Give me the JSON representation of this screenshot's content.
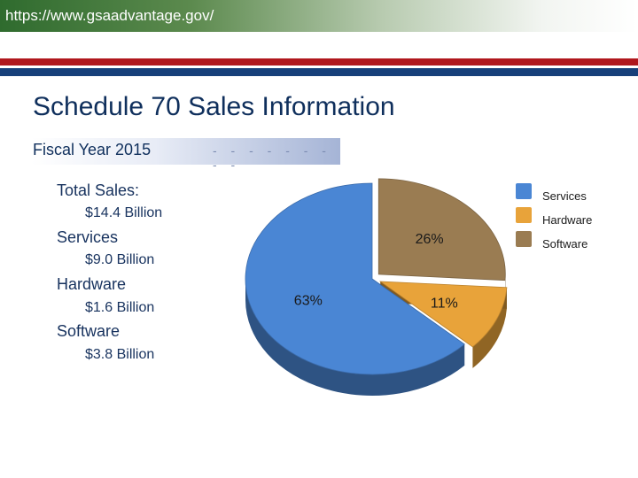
{
  "browser": {
    "url": "https://www.gsaadvantage.gov/"
  },
  "slide": {
    "title": "Schedule 70 Sales Information",
    "subtitle": "Fiscal Year 2015",
    "subtitle_dots": "- - - - - - - - -"
  },
  "stats": {
    "total_label": "Total Sales:",
    "total_value": "$14.4  Billion",
    "services_label": "Services",
    "services_value": "$9.0 Billion",
    "hardware_label": "Hardware",
    "hardware_value": "$1.6 Billion",
    "software_label": "Software",
    "software_value": "$3.8 Billion"
  },
  "colors": {
    "services": "#4a86d4",
    "hardware": "#e8a33a",
    "software": "#9a7c52",
    "brand_red": "#b0171d",
    "brand_blue": "#17407a"
  },
  "chart_data": {
    "type": "pie",
    "title": "",
    "legend_position": "right",
    "slices": [
      {
        "name": "Services",
        "value": 63,
        "label": "63%",
        "color": "#4a86d4"
      },
      {
        "name": "Hardware",
        "value": 11,
        "label": "11%",
        "color": "#e8a33a"
      },
      {
        "name": "Software",
        "value": 26,
        "label": "26%",
        "color": "#9a7c52"
      }
    ],
    "legend": [
      "Services",
      "Hardware",
      "Software"
    ],
    "style": "3d-tilted"
  }
}
